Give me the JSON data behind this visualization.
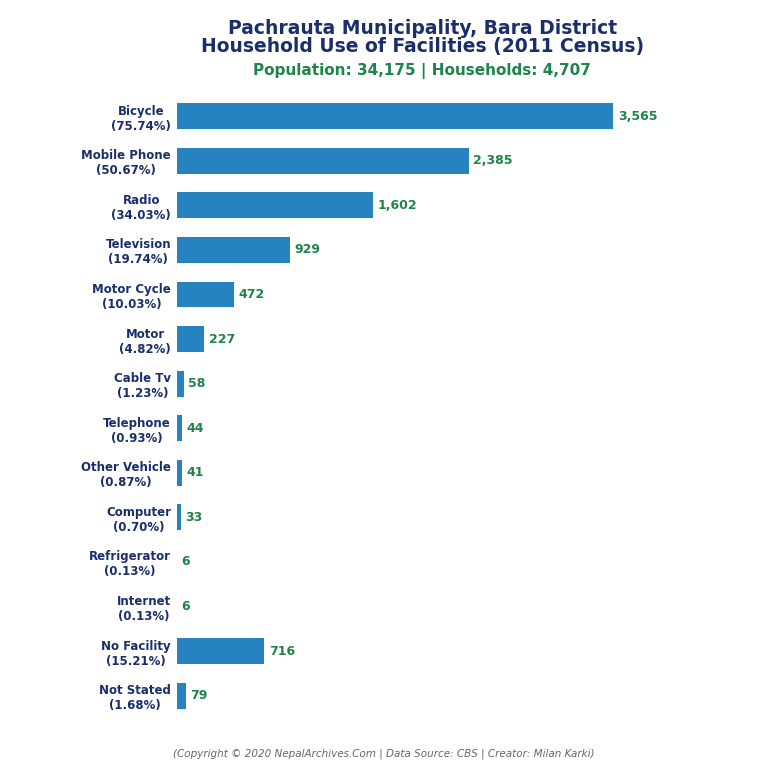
{
  "title_line1": "Pachrauta Municipality, Bara District",
  "title_line2": "Household Use of Facilities (2011 Census)",
  "subtitle": "Population: 34,175 | Households: 4,707",
  "footer": "(Copyright © 2020 NepalArchives.Com | Data Source: CBS | Creator: Milan Karki)",
  "categories": [
    "Bicycle\n(75.74%)",
    "Mobile Phone\n(50.67%)",
    "Radio\n(34.03%)",
    "Television\n(19.74%)",
    "Motor Cycle\n(10.03%)",
    "Motor\n(4.82%)",
    "Cable Tv\n(1.23%)",
    "Telephone\n(0.93%)",
    "Other Vehicle\n(0.87%)",
    "Computer\n(0.70%)",
    "Refrigerator\n(0.13%)",
    "Internet\n(0.13%)",
    "No Facility\n(15.21%)",
    "Not Stated\n(1.68%)"
  ],
  "values": [
    3565,
    2385,
    1602,
    929,
    472,
    227,
    58,
    44,
    41,
    33,
    6,
    6,
    716,
    79
  ],
  "value_labels": [
    "3,565",
    "2,385",
    "1,602",
    "929",
    "472",
    "227",
    "58",
    "44",
    "41",
    "33",
    "6",
    "6",
    "716",
    "79"
  ],
  "bar_color": "#2783c0",
  "title_color": "#1a2e6b",
  "subtitle_color": "#1e8449",
  "value_color": "#1e8449",
  "footer_color": "#666666",
  "background_color": "#ffffff",
  "xlim": [
    0,
    4200
  ]
}
